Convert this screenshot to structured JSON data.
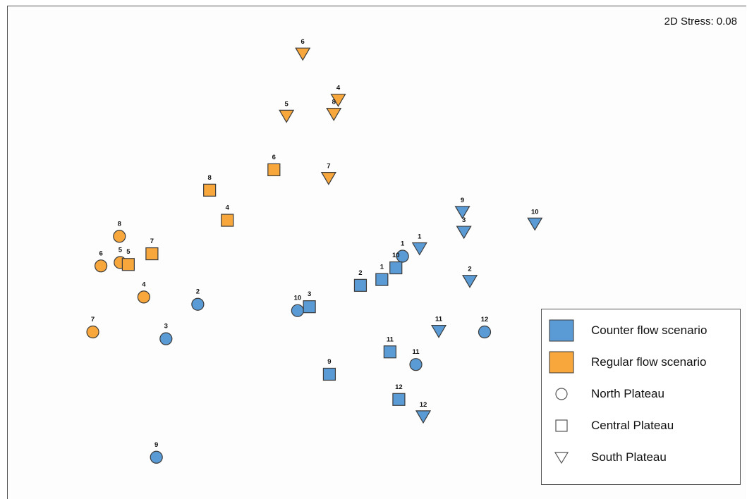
{
  "stress_text": "2D Stress: 0.08",
  "colors": {
    "counter": "#5b9bd5",
    "regular": "#f7a73c",
    "stroke": "#3a3a3a"
  },
  "legend": {
    "counter": "Counter flow scenario",
    "regular": "Regular flow scenario",
    "north": "North Plateau",
    "central": "Central Plateau",
    "south": "South Plateau"
  },
  "chart_data": {
    "type": "scatter",
    "title": "",
    "xlabel": "",
    "ylabel": "",
    "grid": false,
    "legend_position": "bottom-right",
    "axes_visible": false,
    "xlim": [
      0,
      100
    ],
    "ylim": [
      0,
      100
    ],
    "series": [
      {
        "name": "Regular flow scenario - North Plateau",
        "scenario": "regular",
        "shape": "circle",
        "points": [
          {
            "label": "8",
            "x": 15.2,
            "y": 52.5
          },
          {
            "label": "6",
            "x": 12.7,
            "y": 46.4
          },
          {
            "label": "5",
            "x": 15.3,
            "y": 47.1
          },
          {
            "label": "4",
            "x": 18.5,
            "y": 40.0
          },
          {
            "label": "7",
            "x": 11.6,
            "y": 32.8
          }
        ]
      },
      {
        "name": "Regular flow scenario - Central Plateau",
        "scenario": "regular",
        "shape": "square",
        "points": [
          {
            "label": "6",
            "x": 36.1,
            "y": 66.2
          },
          {
            "label": "8",
            "x": 27.4,
            "y": 62.0
          },
          {
            "label": "4",
            "x": 29.8,
            "y": 55.8
          },
          {
            "label": "7",
            "x": 19.6,
            "y": 48.9
          },
          {
            "label": "5",
            "x": 16.4,
            "y": 46.7
          }
        ]
      },
      {
        "name": "Regular flow scenario - South Plateau",
        "scenario": "regular",
        "shape": "triangle",
        "points": [
          {
            "label": "6",
            "x": 40.0,
            "y": 90.1
          },
          {
            "label": "4",
            "x": 44.8,
            "y": 80.6
          },
          {
            "label": "5",
            "x": 37.8,
            "y": 77.3
          },
          {
            "label": "8",
            "x": 44.2,
            "y": 77.7
          },
          {
            "label": "7",
            "x": 43.5,
            "y": 64.5
          }
        ]
      },
      {
        "name": "Counter flow scenario - North Plateau",
        "scenario": "counter",
        "shape": "circle",
        "points": [
          {
            "label": "1",
            "x": 53.5,
            "y": 48.4
          },
          {
            "label": "2",
            "x": 25.8,
            "y": 38.5
          },
          {
            "label": "3",
            "x": 21.5,
            "y": 31.4
          },
          {
            "label": "10",
            "x": 39.3,
            "y": 37.2
          },
          {
            "label": "11",
            "x": 55.3,
            "y": 26.1
          },
          {
            "label": "12",
            "x": 64.6,
            "y": 32.8
          },
          {
            "label": "9",
            "x": 20.2,
            "y": 7.0
          }
        ]
      },
      {
        "name": "Counter flow scenario - Central Plateau",
        "scenario": "counter",
        "shape": "square",
        "points": [
          {
            "label": "10",
            "x": 52.6,
            "y": 46.0
          },
          {
            "label": "1",
            "x": 50.7,
            "y": 43.6
          },
          {
            "label": "2",
            "x": 47.8,
            "y": 42.4
          },
          {
            "label": "3",
            "x": 40.9,
            "y": 38.0
          },
          {
            "label": "11",
            "x": 51.8,
            "y": 28.7
          },
          {
            "label": "9",
            "x": 43.6,
            "y": 24.1
          },
          {
            "label": "12",
            "x": 53.0,
            "y": 18.9
          }
        ]
      },
      {
        "name": "Counter flow scenario - South Plateau",
        "scenario": "counter",
        "shape": "triangle",
        "points": [
          {
            "label": "1",
            "x": 55.8,
            "y": 50.0
          },
          {
            "label": "9",
            "x": 61.6,
            "y": 57.5
          },
          {
            "label": "3",
            "x": 61.8,
            "y": 53.4
          },
          {
            "label": "10",
            "x": 71.4,
            "y": 55.1
          },
          {
            "label": "2",
            "x": 62.6,
            "y": 43.3
          },
          {
            "label": "11",
            "x": 58.4,
            "y": 33.0
          },
          {
            "label": "12",
            "x": 56.3,
            "y": 15.4
          }
        ]
      }
    ]
  }
}
